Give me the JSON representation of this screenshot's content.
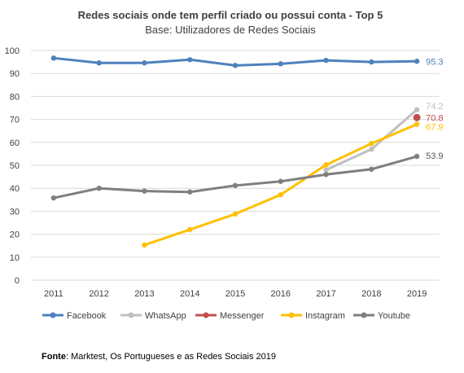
{
  "chart_data": {
    "type": "line",
    "title": "Redes sociais onde tem perfil criado ou possui conta - Top 5",
    "subtitle": "Base: Utilizadores de Redes Sociais",
    "categories": [
      "2011",
      "2012",
      "2013",
      "2014",
      "2015",
      "2016",
      "2017",
      "2018",
      "2019"
    ],
    "ylim": [
      0,
      100
    ],
    "yticks": [
      0,
      10,
      20,
      30,
      40,
      50,
      60,
      70,
      80,
      90,
      100
    ],
    "grid": true,
    "legend_position": "bottom",
    "series": [
      {
        "name": "Facebook",
        "color": "#4f81bd",
        "values": [
          96.7,
          94.6,
          94.6,
          96.0,
          93.5,
          94.2,
          95.7,
          95.0,
          95.3
        ],
        "end_label": "95.3"
      },
      {
        "name": "WhatsApp",
        "color": "#bfbfbf",
        "values": [
          null,
          null,
          null,
          null,
          null,
          null,
          48.0,
          57.0,
          74.2
        ],
        "end_label": "74.2"
      },
      {
        "name": "Messenger",
        "color": "#c0504d",
        "values": [
          null,
          null,
          null,
          null,
          null,
          null,
          null,
          null,
          70.8
        ],
        "end_label": "70.8"
      },
      {
        "name": "Instagram",
        "color": "#ffc000",
        "values": [
          null,
          null,
          15.3,
          22.0,
          28.8,
          37.2,
          50.2,
          59.5,
          67.9
        ],
        "end_label": "67.9"
      },
      {
        "name": "Youtube",
        "color": "#7f7f7f",
        "values": [
          35.8,
          40.0,
          38.8,
          38.4,
          41.2,
          43.0,
          46.0,
          48.3,
          53.9
        ],
        "end_label": "53.9"
      }
    ]
  },
  "source": {
    "label": "Fonte",
    "text": ": Marktest, Os Portugueses e as Redes Sociais 2019"
  }
}
